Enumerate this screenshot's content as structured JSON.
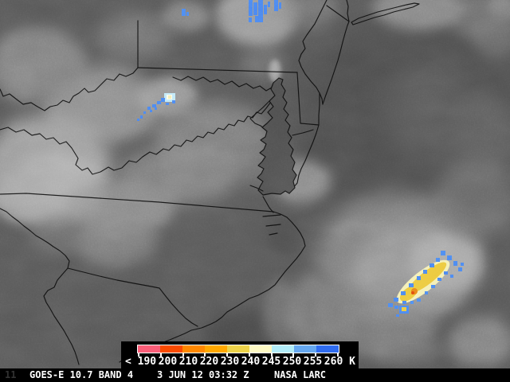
{
  "product": {
    "title": "GOES-E 10.7 BAND 4",
    "satellite": "GOES-E",
    "channel_um": "10.7",
    "band": "BAND 4",
    "timestamp": "3 JUN 12 03:32 Z",
    "credit": "NASA LARC",
    "corner_mark": "11"
  },
  "colorbar": {
    "unit": "K",
    "labels": [
      "< 190",
      "200",
      "210",
      "220",
      "230",
      "240",
      "245",
      "250",
      "255",
      "260 K"
    ],
    "segment_colors": [
      "#fa5e78",
      "#fa4b00",
      "#ff8800",
      "#ffa800",
      "#ecd24a",
      "#fdf9c4",
      "#b2ecf8",
      "#66a8f0",
      "#2f6cf0"
    ]
  },
  "palette": {
    "storm_blue": "#4b86f0",
    "storm_gold": "#ecc83e",
    "storm_cream": "#f4efb4",
    "storm_orange": "#e8821a",
    "storm_red": "#e04a10",
    "storm_cyan": "#bfe9f8",
    "storm_white": "#fdfdf0",
    "border_black": "#0a0a0a",
    "panel_bg": "#000000",
    "text_white": "#ffffff"
  },
  "map": {
    "region": "US Mid-Atlantic coast infrared satellite view",
    "features": [
      "state-borders",
      "chesapeake-bay",
      "delaware-bay",
      "outer-banks",
      "long-island",
      "storm-cell-atlantic",
      "storm-cell-west-virginia",
      "cold-tops-north"
    ]
  }
}
